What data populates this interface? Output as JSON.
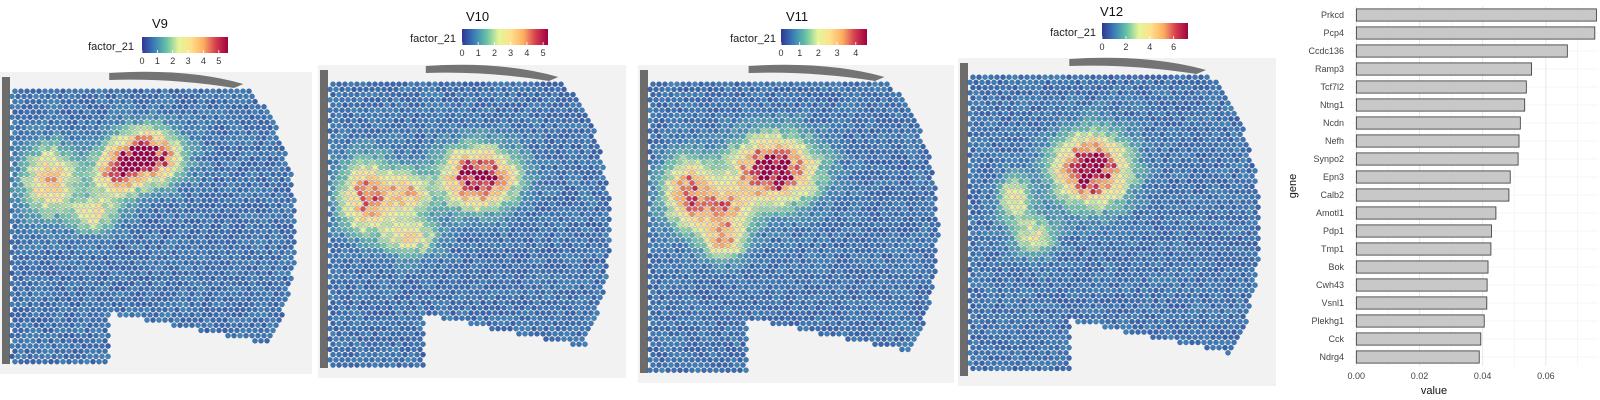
{
  "colors": {
    "spot_low": "#3a4f9e",
    "palette": [
      "#313695",
      "#3a7fb8",
      "#66c2a5",
      "#e6f598",
      "#fee08b",
      "#fdae61",
      "#d53e4f",
      "#9e0142"
    ],
    "bar_fill": "#c8c8c8",
    "bar_stroke": "#333333",
    "tissue": "#d9d9d9",
    "tissue_dark": "#4a4a4a"
  },
  "chart_data": [
    {
      "type": "heatmap",
      "title": "V9",
      "legend_label": "factor_21",
      "legend_ticks": [
        "0",
        "1",
        "2",
        "3",
        "4",
        "5"
      ],
      "color_range": [
        0,
        5.6
      ]
    },
    {
      "type": "heatmap",
      "title": "V10",
      "legend_label": "factor_21",
      "legend_ticks": [
        "0",
        "1",
        "2",
        "3",
        "4",
        "5"
      ],
      "color_range": [
        0,
        5.3
      ]
    },
    {
      "type": "heatmap",
      "title": "V11",
      "legend_label": "factor_21",
      "legend_ticks": [
        "0",
        "1",
        "2",
        "3",
        "4"
      ],
      "color_range": [
        0,
        4.6
      ]
    },
    {
      "type": "heatmap",
      "title": "V12",
      "legend_label": "factor_21",
      "legend_ticks": [
        "0",
        "2",
        "4",
        "6"
      ],
      "color_range": [
        0,
        7.2
      ]
    },
    {
      "type": "bar",
      "orientation": "horizontal",
      "xlabel": "value",
      "ylabel": "gene",
      "xlim": [
        -0.002,
        0.0765
      ],
      "x_ticks": [
        "0.00",
        "0.02",
        "0.04",
        "0.06"
      ],
      "grid": true,
      "categories": [
        "Prkcd",
        "Pcp4",
        "Ccdc136",
        "Ramp3",
        "Tcf7l2",
        "Ntng1",
        "Ncdn",
        "Nefh",
        "Synpo2",
        "Epn3",
        "Calb2",
        "Amotl1",
        "Pdp1",
        "Tmp1",
        "Bok",
        "Cwh43",
        "Vsnl1",
        "Plekhg1",
        "Cck",
        "Ndrg4"
      ],
      "values": [
        0.076,
        0.0755,
        0.0668,
        0.0555,
        0.0538,
        0.0533,
        0.0519,
        0.0515,
        0.0512,
        0.0487,
        0.0483,
        0.0442,
        0.0428,
        0.0426,
        0.0417,
        0.0414,
        0.0413,
        0.0405,
        0.0394,
        0.0389
      ]
    }
  ]
}
